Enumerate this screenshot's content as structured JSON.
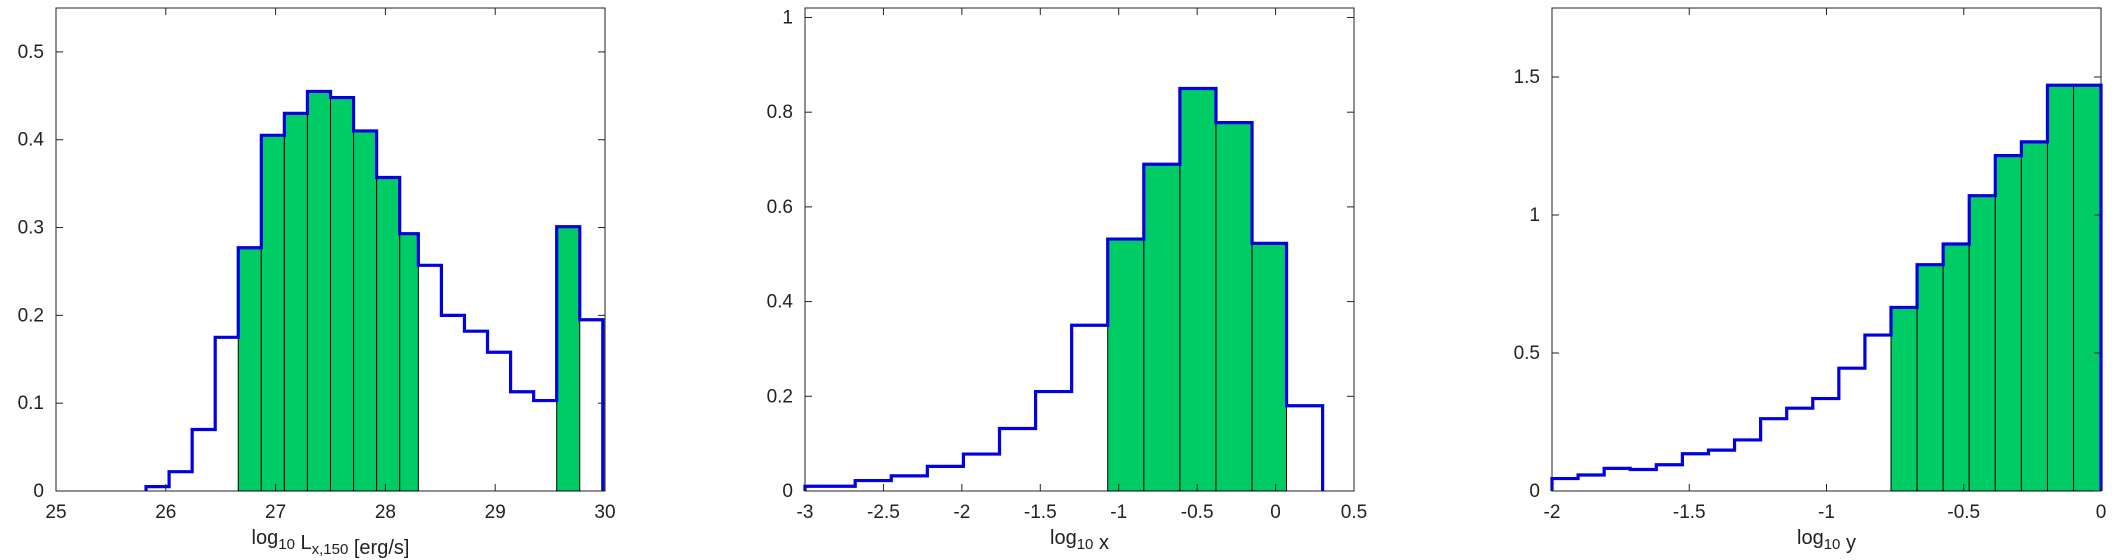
{
  "colors": {
    "outline": "#0000e0",
    "fill": "#00cc66",
    "axis": "#222222"
  },
  "chart_data": [
    {
      "type": "bar",
      "xlabel": {
        "base": "log",
        "sub": "10",
        "var": "L",
        "varsub": "x,150",
        "unit": "[erg/s]"
      },
      "xlim": [
        25,
        30
      ],
      "ylim": [
        0,
        0.55
      ],
      "xticks": [
        25,
        26,
        27,
        28,
        29,
        30
      ],
      "xtick_labels": [
        "25",
        "26",
        "27",
        "28",
        "29",
        "30"
      ],
      "yticks": [
        0,
        0.1,
        0.2,
        0.3,
        0.4,
        0.5
      ],
      "ytick_labels": [
        "0",
        "0.1",
        "0.2",
        "0.3",
        "0.4",
        "0.5"
      ],
      "bins": [
        {
          "x0": 25.82,
          "x1": 26.03,
          "y": 0.005,
          "shaded": false
        },
        {
          "x0": 26.03,
          "x1": 26.24,
          "y": 0.022,
          "shaded": false
        },
        {
          "x0": 26.24,
          "x1": 26.45,
          "y": 0.07,
          "shaded": false
        },
        {
          "x0": 26.45,
          "x1": 26.66,
          "y": 0.175,
          "shaded": false
        },
        {
          "x0": 26.66,
          "x1": 26.87,
          "y": 0.277,
          "shaded": true
        },
        {
          "x0": 26.87,
          "x1": 27.08,
          "y": 0.405,
          "shaded": true
        },
        {
          "x0": 27.08,
          "x1": 27.29,
          "y": 0.43,
          "shaded": true
        },
        {
          "x0": 27.29,
          "x1": 27.5,
          "y": 0.455,
          "shaded": true
        },
        {
          "x0": 27.5,
          "x1": 27.71,
          "y": 0.448,
          "shaded": true
        },
        {
          "x0": 27.71,
          "x1": 27.92,
          "y": 0.41,
          "shaded": true
        },
        {
          "x0": 27.92,
          "x1": 28.13,
          "y": 0.357,
          "shaded": true
        },
        {
          "x0": 28.13,
          "x1": 28.3,
          "y": 0.293,
          "shaded": true
        },
        {
          "x0": 28.3,
          "x1": 28.51,
          "y": 0.257,
          "shaded": false
        },
        {
          "x0": 28.51,
          "x1": 28.72,
          "y": 0.2,
          "shaded": false
        },
        {
          "x0": 28.72,
          "x1": 28.93,
          "y": 0.182,
          "shaded": false
        },
        {
          "x0": 28.93,
          "x1": 29.14,
          "y": 0.158,
          "shaded": false
        },
        {
          "x0": 29.14,
          "x1": 29.35,
          "y": 0.113,
          "shaded": false
        },
        {
          "x0": 29.35,
          "x1": 29.56,
          "y": 0.103,
          "shaded": false
        },
        {
          "x0": 29.56,
          "x1": 29.77,
          "y": 0.301,
          "shaded": true
        },
        {
          "x0": 29.77,
          "x1": 29.98,
          "y": 0.195,
          "shaded": false
        }
      ]
    },
    {
      "type": "bar",
      "xlabel": {
        "base": "log",
        "sub": "10",
        "var": "x",
        "varsub": "",
        "unit": ""
      },
      "xlim": [
        -3,
        0.5
      ],
      "ylim": [
        0,
        1.02
      ],
      "xticks": [
        -3,
        -2.5,
        -2,
        -1.5,
        -1,
        -0.5,
        0,
        0.5
      ],
      "xtick_labels": [
        "-3",
        "-2.5",
        "-2",
        "-1.5",
        "-1",
        "-0.5",
        "0",
        "0.5"
      ],
      "yticks": [
        0,
        0.2,
        0.4,
        0.6,
        0.8,
        1
      ],
      "ytick_labels": [
        "0",
        "0.2",
        "0.4",
        "0.6",
        "0.8",
        "1"
      ],
      "bins": [
        {
          "x0": -3.0,
          "x1": -2.68,
          "y": 0.01,
          "shaded": false
        },
        {
          "x0": -2.68,
          "x1": -2.45,
          "y": 0.022,
          "shaded": false
        },
        {
          "x0": -2.45,
          "x1": -2.22,
          "y": 0.032,
          "shaded": false
        },
        {
          "x0": -2.22,
          "x1": -1.99,
          "y": 0.052,
          "shaded": false
        },
        {
          "x0": -1.99,
          "x1": -1.76,
          "y": 0.078,
          "shaded": false
        },
        {
          "x0": -1.76,
          "x1": -1.53,
          "y": 0.132,
          "shaded": false
        },
        {
          "x0": -1.53,
          "x1": -1.3,
          "y": 0.21,
          "shaded": false
        },
        {
          "x0": -1.3,
          "x1": -1.07,
          "y": 0.35,
          "shaded": false
        },
        {
          "x0": -1.07,
          "x1": -0.84,
          "y": 0.532,
          "shaded": true
        },
        {
          "x0": -0.84,
          "x1": -0.61,
          "y": 0.69,
          "shaded": true
        },
        {
          "x0": -0.61,
          "x1": -0.38,
          "y": 0.85,
          "shaded": true
        },
        {
          "x0": -0.38,
          "x1": -0.15,
          "y": 0.778,
          "shaded": true
        },
        {
          "x0": -0.15,
          "x1": 0.07,
          "y": 0.523,
          "shaded": true
        },
        {
          "x0": 0.07,
          "x1": 0.3,
          "y": 0.18,
          "shaded": false
        }
      ]
    },
    {
      "type": "bar",
      "xlabel": {
        "base": "log",
        "sub": "10",
        "var": "y",
        "varsub": "",
        "unit": ""
      },
      "xlim": [
        -2,
        0
      ],
      "ylim": [
        0,
        1.75
      ],
      "xticks": [
        -2,
        -1.5,
        -1,
        -0.5,
        0
      ],
      "xtick_labels": [
        "-2",
        "-1.5",
        "-1",
        "-0.5",
        "0"
      ],
      "yticks": [
        0,
        0.5,
        1,
        1.5
      ],
      "ytick_labels": [
        "0",
        "0.5",
        "1",
        "1.5"
      ],
      "bins": [
        {
          "x0": -2.0,
          "x1": -1.905,
          "y": 0.045,
          "shaded": false
        },
        {
          "x0": -1.905,
          "x1": -1.81,
          "y": 0.058,
          "shaded": false
        },
        {
          "x0": -1.81,
          "x1": -1.715,
          "y": 0.082,
          "shaded": false
        },
        {
          "x0": -1.715,
          "x1": -1.62,
          "y": 0.078,
          "shaded": false
        },
        {
          "x0": -1.62,
          "x1": -1.525,
          "y": 0.095,
          "shaded": false
        },
        {
          "x0": -1.525,
          "x1": -1.43,
          "y": 0.135,
          "shaded": false
        },
        {
          "x0": -1.43,
          "x1": -1.335,
          "y": 0.148,
          "shaded": false
        },
        {
          "x0": -1.335,
          "x1": -1.24,
          "y": 0.185,
          "shaded": false
        },
        {
          "x0": -1.24,
          "x1": -1.145,
          "y": 0.262,
          "shaded": false
        },
        {
          "x0": -1.145,
          "x1": -1.05,
          "y": 0.3,
          "shaded": false
        },
        {
          "x0": -1.05,
          "x1": -0.955,
          "y": 0.335,
          "shaded": false
        },
        {
          "x0": -0.955,
          "x1": -0.86,
          "y": 0.445,
          "shaded": false
        },
        {
          "x0": -0.86,
          "x1": -0.765,
          "y": 0.565,
          "shaded": false
        },
        {
          "x0": -0.765,
          "x1": -0.67,
          "y": 0.665,
          "shaded": true
        },
        {
          "x0": -0.67,
          "x1": -0.575,
          "y": 0.82,
          "shaded": true
        },
        {
          "x0": -0.575,
          "x1": -0.48,
          "y": 0.895,
          "shaded": true
        },
        {
          "x0": -0.48,
          "x1": -0.385,
          "y": 1.07,
          "shaded": true
        },
        {
          "x0": -0.385,
          "x1": -0.29,
          "y": 1.215,
          "shaded": true
        },
        {
          "x0": -0.29,
          "x1": -0.195,
          "y": 1.265,
          "shaded": true
        },
        {
          "x0": -0.195,
          "x1": -0.1,
          "y": 1.47,
          "shaded": true
        },
        {
          "x0": -0.1,
          "x1": 0.0,
          "y": 1.47,
          "shaded": true
        }
      ]
    }
  ]
}
